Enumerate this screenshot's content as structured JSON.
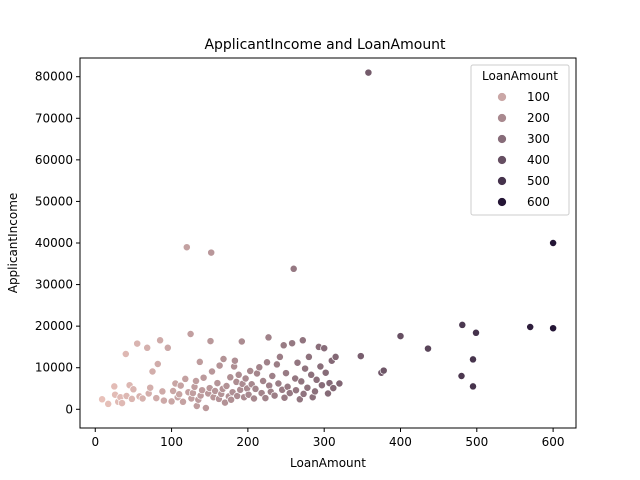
{
  "chart_data": {
    "type": "scatter",
    "title": "ApplicantIncome and LoanAmount",
    "xlabel": "LoanAmount",
    "ylabel": "ApplicantIncome",
    "xlim": [
      -20,
      630
    ],
    "ylim": [
      -4500,
      84500
    ],
    "xticks": [
      0,
      100,
      200,
      300,
      400,
      500,
      600
    ],
    "yticks": [
      0,
      10000,
      20000,
      30000,
      40000,
      50000,
      60000,
      70000,
      80000
    ],
    "grid": false,
    "hue": "LoanAmount",
    "hue_range": [
      9,
      600
    ],
    "colors": {
      "low": "#e8c1ba",
      "high": "#241535"
    },
    "legend": {
      "title": "LoanAmount",
      "placement": "top-right",
      "entries": [
        "100",
        "200",
        "300",
        "400",
        "500",
        "600"
      ]
    },
    "points": [
      [
        9,
        2400
      ],
      [
        17,
        1300
      ],
      [
        25,
        5500
      ],
      [
        26,
        3500
      ],
      [
        30,
        1800
      ],
      [
        33,
        2900
      ],
      [
        35,
        1500
      ],
      [
        40,
        13300
      ],
      [
        41,
        3200
      ],
      [
        45,
        5800
      ],
      [
        48,
        2500
      ],
      [
        50,
        4800
      ],
      [
        55,
        15800
      ],
      [
        58,
        3100
      ],
      [
        62,
        2600
      ],
      [
        68,
        14800
      ],
      [
        70,
        3800
      ],
      [
        72,
        5200
      ],
      [
        75,
        9100
      ],
      [
        80,
        2700
      ],
      [
        82,
        10900
      ],
      [
        85,
        16600
      ],
      [
        88,
        4300
      ],
      [
        90,
        2100
      ],
      [
        95,
        14800
      ],
      [
        100,
        1900
      ],
      [
        102,
        4400
      ],
      [
        105,
        6200
      ],
      [
        108,
        2900
      ],
      [
        110,
        3600
      ],
      [
        112,
        5700
      ],
      [
        115,
        1800
      ],
      [
        118,
        7300
      ],
      [
        120,
        39000
      ],
      [
        122,
        4100
      ],
      [
        125,
        18100
      ],
      [
        126,
        2600
      ],
      [
        128,
        3900
      ],
      [
        130,
        5400
      ],
      [
        132,
        6800
      ],
      [
        133,
        800
      ],
      [
        135,
        2300
      ],
      [
        137,
        11400
      ],
      [
        138,
        3300
      ],
      [
        140,
        4600
      ],
      [
        142,
        7600
      ],
      [
        145,
        300
      ],
      [
        148,
        3800
      ],
      [
        150,
        5100
      ],
      [
        151,
        16400
      ],
      [
        152,
        37700
      ],
      [
        153,
        9100
      ],
      [
        155,
        2900
      ],
      [
        157,
        4400
      ],
      [
        160,
        6300
      ],
      [
        162,
        2500
      ],
      [
        163,
        10500
      ],
      [
        165,
        3700
      ],
      [
        167,
        4900
      ],
      [
        168,
        12100
      ],
      [
        170,
        1600
      ],
      [
        172,
        5600
      ],
      [
        175,
        3100
      ],
      [
        177,
        7700
      ],
      [
        178,
        2300
      ],
      [
        180,
        4100
      ],
      [
        182,
        10300
      ],
      [
        183,
        11700
      ],
      [
        185,
        6600
      ],
      [
        186,
        3200
      ],
      [
        188,
        8300
      ],
      [
        190,
        4700
      ],
      [
        192,
        16300
      ],
      [
        193,
        6100
      ],
      [
        195,
        2900
      ],
      [
        197,
        7400
      ],
      [
        199,
        5000
      ],
      [
        201,
        3500
      ],
      [
        203,
        9200
      ],
      [
        205,
        6000
      ],
      [
        208,
        2600
      ],
      [
        210,
        4900
      ],
      [
        212,
        8600
      ],
      [
        215,
        10100
      ],
      [
        218,
        3900
      ],
      [
        220,
        6800
      ],
      [
        223,
        2700
      ],
      [
        225,
        11300
      ],
      [
        227,
        17300
      ],
      [
        228,
        5700
      ],
      [
        230,
        4200
      ],
      [
        232,
        8000
      ],
      [
        235,
        3300
      ],
      [
        238,
        10800
      ],
      [
        240,
        6200
      ],
      [
        242,
        12600
      ],
      [
        245,
        4700
      ],
      [
        247,
        15400
      ],
      [
        248,
        2800
      ],
      [
        250,
        8700
      ],
      [
        252,
        5400
      ],
      [
        255,
        3900
      ],
      [
        258,
        15900
      ],
      [
        260,
        33800
      ],
      [
        262,
        7400
      ],
      [
        263,
        4600
      ],
      [
        265,
        11200
      ],
      [
        268,
        2400
      ],
      [
        270,
        6700
      ],
      [
        272,
        16600
      ],
      [
        273,
        3700
      ],
      [
        275,
        9800
      ],
      [
        278,
        5200
      ],
      [
        280,
        12600
      ],
      [
        283,
        8300
      ],
      [
        285,
        2900
      ],
      [
        288,
        4300
      ],
      [
        290,
        7100
      ],
      [
        293,
        15000
      ],
      [
        295,
        10300
      ],
      [
        297,
        5800
      ],
      [
        300,
        14700
      ],
      [
        302,
        8800
      ],
      [
        305,
        3800
      ],
      [
        307,
        6300
      ],
      [
        310,
        11700
      ],
      [
        312,
        5100
      ],
      [
        315,
        12600
      ],
      [
        320,
        6200
      ],
      [
        348,
        12800
      ],
      [
        358,
        81000
      ],
      [
        375,
        8800
      ],
      [
        378,
        9300
      ],
      [
        400,
        17600
      ],
      [
        436,
        14600
      ],
      [
        480,
        8000
      ],
      [
        481,
        20300
      ],
      [
        495,
        5500
      ],
      [
        495,
        12000
      ],
      [
        499,
        18400
      ],
      [
        570,
        19800
      ],
      [
        600,
        40000
      ],
      [
        600,
        19500
      ]
    ]
  }
}
